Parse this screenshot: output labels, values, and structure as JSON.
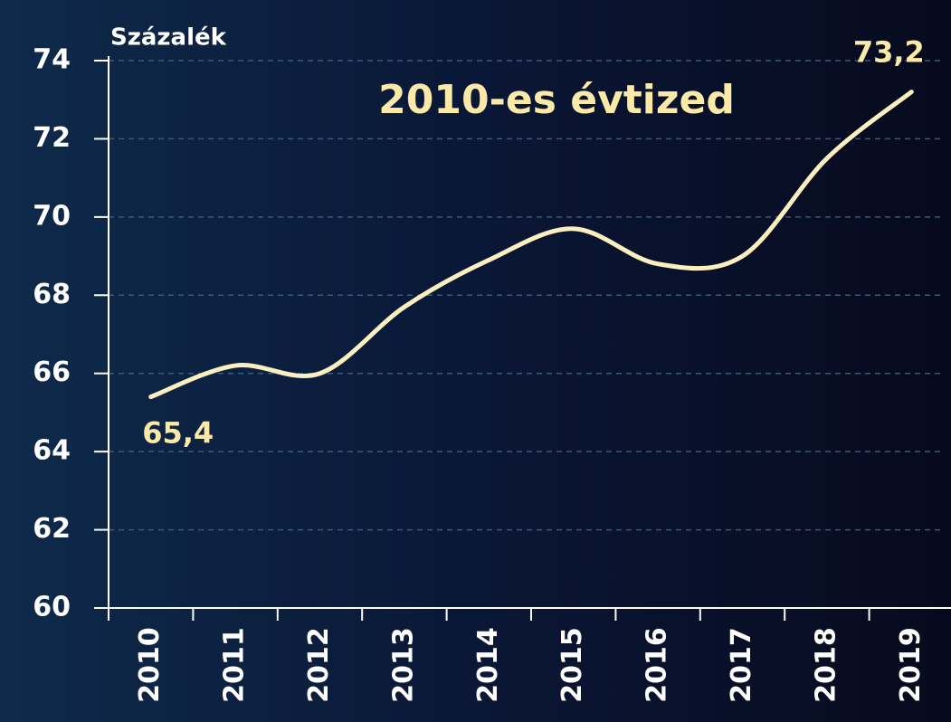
{
  "chart_data": {
    "type": "line",
    "title": "2010-es évtized",
    "y_label": "Százalék",
    "categories": [
      "2010",
      "2011",
      "2012",
      "2013",
      "2014",
      "2015",
      "2016",
      "2017",
      "2018",
      "2019"
    ],
    "series": [
      {
        "name": null,
        "color": "#fbefc0",
        "values": [
          65.4,
          66.2,
          66.0,
          67.7,
          68.9,
          69.7,
          68.8,
          69.0,
          71.5,
          73.2
        ],
        "value_labels": [
          "65,4",
          null,
          null,
          null,
          null,
          null,
          null,
          null,
          null,
          "73,2"
        ]
      }
    ],
    "ylim": [
      60,
      74
    ],
    "yticks": [
      60,
      62,
      64,
      66,
      68,
      70,
      72,
      74
    ],
    "grid": true
  }
}
